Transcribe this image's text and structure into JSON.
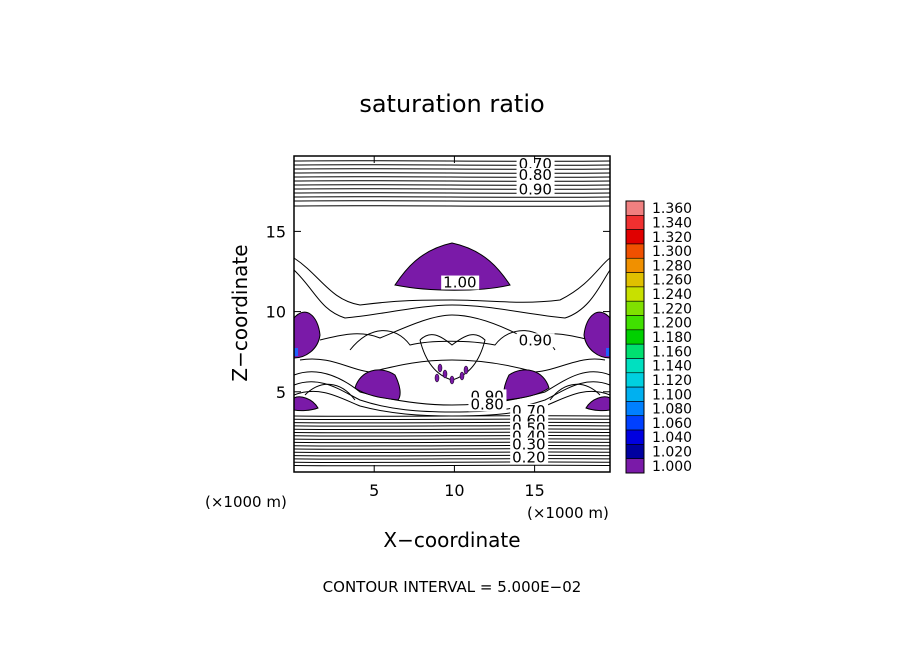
{
  "chart_data": {
    "type": "contour",
    "title": "saturation ratio",
    "xlabel": "X−coordinate",
    "ylabel": "Z−coordinate",
    "x_unit_left": "(×1000 m)",
    "x_unit_right": "(×1000 m)",
    "x_ticks": [
      5,
      10,
      15
    ],
    "y_ticks": [
      5,
      10,
      15
    ],
    "xlim": [
      0,
      19.7
    ],
    "ylim": [
      0,
      19.7
    ],
    "footer": "CONTOUR INTERVAL = 5.000E−02",
    "colorbar": {
      "labels": [
        "1.360",
        "1.340",
        "1.320",
        "1.300",
        "1.280",
        "1.260",
        "1.240",
        "1.220",
        "1.200",
        "1.180",
        "1.160",
        "1.140",
        "1.120",
        "1.100",
        "1.080",
        "1.060",
        "1.040",
        "1.020",
        "1.000"
      ],
      "colors": [
        "#f08080",
        "#f03030",
        "#e00000",
        "#f05000",
        "#f09000",
        "#e0c000",
        "#c8e000",
        "#80e000",
        "#40e000",
        "#00d000",
        "#00e070",
        "#00e0c0",
        "#00d0e0",
        "#00b0f0",
        "#0080ff",
        "#0040ff",
        "#0000e0",
        "#0000a0",
        "#7a1aa8"
      ]
    },
    "contour_labels": [
      {
        "text": "0.70",
        "x": 14.0,
        "z": 18.9
      },
      {
        "text": "0.80",
        "x": 14.0,
        "z": 18.2
      },
      {
        "text": "0.90",
        "x": 14.0,
        "z": 17.3
      },
      {
        "text": "1.00",
        "x": 9.3,
        "z": 11.5
      },
      {
        "text": "0.90",
        "x": 14.0,
        "z": 7.9
      },
      {
        "text": "0.90",
        "x": 11.0,
        "z": 4.4
      },
      {
        "text": "0.80",
        "x": 11.0,
        "z": 3.9
      },
      {
        "text": "0.70",
        "x": 13.6,
        "z": 3.5
      },
      {
        "text": "0.60",
        "x": 13.6,
        "z": 2.9
      },
      {
        "text": "0.50",
        "x": 13.6,
        "z": 2.4
      },
      {
        "text": "0.40",
        "x": 13.6,
        "z": 1.9
      },
      {
        "text": "0.30",
        "x": 13.6,
        "z": 1.4
      },
      {
        "text": "0.20",
        "x": 13.6,
        "z": 0.6
      }
    ],
    "supersaturated_regions": [
      {
        "name": "upper-dome",
        "color": "#7a1aa8"
      },
      {
        "name": "left-edge-upper",
        "color": "#7a1aa8"
      },
      {
        "name": "right-edge-upper",
        "color": "#7a1aa8"
      },
      {
        "name": "left-lobe",
        "color": "#7a1aa8"
      },
      {
        "name": "right-lobe",
        "color": "#7a1aa8"
      },
      {
        "name": "left-edge-lower",
        "color": "#7a1aa8"
      },
      {
        "name": "right-edge-lower",
        "color": "#7a1aa8"
      }
    ]
  }
}
